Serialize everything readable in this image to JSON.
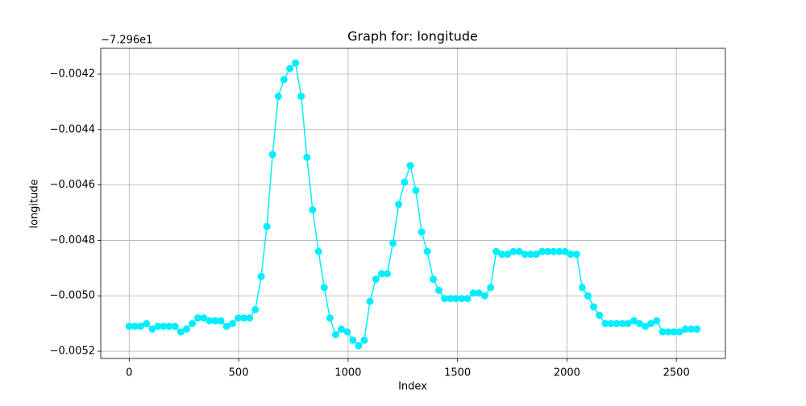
{
  "chart_data": {
    "type": "line",
    "title": "Graph for: longitude",
    "x_label": "Index",
    "y_label": "longitude",
    "y_offset_label": "−7.296e1",
    "x": [
      0,
      26,
      52,
      79,
      105,
      131,
      157,
      183,
      210,
      236,
      262,
      288,
      314,
      341,
      367,
      393,
      419,
      445,
      472,
      498,
      524,
      550,
      576,
      603,
      629,
      655,
      681,
      707,
      734,
      760,
      786,
      812,
      838,
      865,
      891,
      917,
      943,
      969,
      996,
      1022,
      1048,
      1074,
      1100,
      1127,
      1153,
      1179,
      1205,
      1231,
      1258,
      1284,
      1310,
      1336,
      1362,
      1389,
      1415,
      1441,
      1467,
      1493,
      1520,
      1546,
      1572,
      1598,
      1624,
      1651,
      1677,
      1703,
      1729,
      1755,
      1782,
      1808,
      1834,
      1860,
      1886,
      1913,
      1939,
      1965,
      1991,
      2017,
      2044,
      2070,
      2096,
      2122,
      2148,
      2175,
      2201,
      2227,
      2253,
      2279,
      2306,
      2332,
      2358,
      2384,
      2410,
      2437,
      2463,
      2489,
      2515,
      2541,
      2568,
      2594
    ],
    "series": [
      {
        "name": "longitude",
        "color": "#00eeff",
        "values": [
          -0.00511,
          -0.00511,
          -0.00511,
          -0.0051,
          -0.00512,
          -0.00511,
          -0.00511,
          -0.00511,
          -0.00511,
          -0.00513,
          -0.00512,
          -0.0051,
          -0.00508,
          -0.00508,
          -0.00509,
          -0.00509,
          -0.00509,
          -0.00511,
          -0.0051,
          -0.00508,
          -0.00508,
          -0.00508,
          -0.00505,
          -0.00493,
          -0.00475,
          -0.00449,
          -0.00428,
          -0.00422,
          -0.00418,
          -0.00416,
          -0.00428,
          -0.0045,
          -0.00469,
          -0.00484,
          -0.00497,
          -0.00508,
          -0.00514,
          -0.00512,
          -0.00513,
          -0.00516,
          -0.00518,
          -0.00516,
          -0.00502,
          -0.00494,
          -0.00492,
          -0.00492,
          -0.00481,
          -0.00467,
          -0.00459,
          -0.00453,
          -0.00462,
          -0.00477,
          -0.00484,
          -0.00494,
          -0.00498,
          -0.00501,
          -0.00501,
          -0.00501,
          -0.00501,
          -0.00501,
          -0.00499,
          -0.00499,
          -0.005,
          -0.00497,
          -0.00484,
          -0.00485,
          -0.00485,
          -0.00484,
          -0.00484,
          -0.00485,
          -0.00485,
          -0.00485,
          -0.00484,
          -0.00484,
          -0.00484,
          -0.00484,
          -0.00484,
          -0.00485,
          -0.00485,
          -0.00497,
          -0.005,
          -0.00504,
          -0.00507,
          -0.0051,
          -0.0051,
          -0.0051,
          -0.0051,
          -0.0051,
          -0.00509,
          -0.0051,
          -0.00511,
          -0.0051,
          -0.00509,
          -0.00513,
          -0.00513,
          -0.00513,
          -0.00513,
          -0.00512,
          -0.00512,
          -0.00512
        ]
      }
    ],
    "xlim": [
      -130,
      2724
    ],
    "xticks": [
      0,
      500,
      1000,
      1500,
      2000,
      2500
    ],
    "ylim": [
      -0.005226,
      -0.004107
    ],
    "yticks": [
      {
        "value": -0.0052,
        "label": "−0.0052"
      },
      {
        "value": -0.005,
        "label": "−0.0050"
      },
      {
        "value": -0.0048,
        "label": "−0.0048"
      },
      {
        "value": -0.0046,
        "label": "−0.0046"
      },
      {
        "value": -0.0044,
        "label": "−0.0044"
      },
      {
        "value": -0.0042,
        "label": "−0.0042"
      }
    ],
    "grid": true
  }
}
